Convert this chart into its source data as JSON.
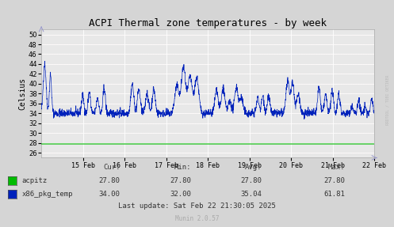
{
  "title": "ACPI Thermal zone temperatures - by week",
  "ylabel": "Celsius",
  "ylim": [
    25,
    51
  ],
  "yticks": [
    26,
    28,
    30,
    32,
    34,
    36,
    38,
    40,
    42,
    44,
    46,
    48,
    50
  ],
  "x_labels": [
    "15 Feb",
    "16 Feb",
    "17 Feb",
    "18 Feb",
    "19 Feb",
    "20 Feb",
    "21 Feb",
    "22 Feb"
  ],
  "background_color": "#d5d5d5",
  "plot_bg_color": "#e8e8e8",
  "grid_color": "#ffffff",
  "grid_color_minor": "#f0d0d0",
  "line_color_acpitz": "#00bb00",
  "line_color_x86": "#0022bb",
  "acpitz_value": 27.8,
  "legend_labels": [
    "acpitz",
    "x86_pkg_temp"
  ],
  "legend_cur": [
    "27.80",
    "34.00"
  ],
  "legend_min": [
    "27.80",
    "32.00"
  ],
  "legend_avg": [
    "27.80",
    "35.04"
  ],
  "legend_max": [
    "27.80",
    "61.81"
  ],
  "footer_text": "Last update: Sat Feb 22 21:30:05 2025",
  "munin_text": "Munin 2.0.57",
  "watermark": "RRDTOOL / TOBI OETIKER",
  "title_fontsize": 9,
  "axis_fontsize": 6,
  "legend_fontsize": 6.5
}
